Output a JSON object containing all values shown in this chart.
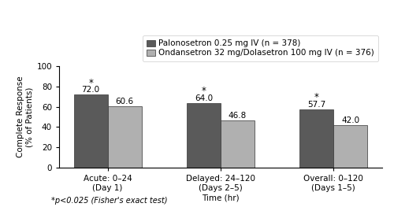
{
  "groups": [
    "Acute: 0–24\n(Day 1)",
    "Delayed: 24–120\n(Days 2–5)",
    "Overall: 0–120\n(Days 1–5)"
  ],
  "palo_values": [
    72.0,
    64.0,
    57.7
  ],
  "comp_values": [
    60.6,
    46.8,
    42.0
  ],
  "palo_color": "#5a5a5a",
  "comp_color": "#b0b0b0",
  "palo_label": "Palonosetron 0.25 mg IV (n = 378)",
  "comp_label": "Ondansetron 32 mg/Dolasetron 100 mg IV (n = 376)",
  "ylabel": "Complete Response\n(% of Patients)",
  "xlabel": "Time (hr)",
  "ylim": [
    0,
    100
  ],
  "yticks": [
    0,
    20,
    40,
    60,
    80,
    100
  ],
  "footnote": "*p<0.025 (Fisher's exact test)",
  "bar_width": 0.3,
  "label_fontsize": 7.5,
  "tick_fontsize": 7.5,
  "value_fontsize": 7.5,
  "footnote_fontsize": 7,
  "legend_fontsize": 7.5,
  "asterisk_groups": [
    0,
    1,
    2
  ]
}
